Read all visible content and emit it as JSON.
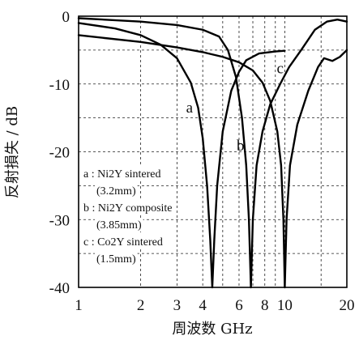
{
  "chart_data": {
    "type": "line",
    "title": "",
    "xlabel": "周波数 GHz",
    "ylabel": "反射損失 / dB",
    "x_scale": "log",
    "xlim": [
      1,
      20
    ],
    "ylim": [
      -40,
      0
    ],
    "grid": true,
    "x_ticks": [
      1,
      2,
      3,
      4,
      6,
      8,
      10,
      20
    ],
    "x_tick_labels": [
      "1",
      "2",
      "3",
      "4",
      "6",
      "8",
      "10",
      "20"
    ],
    "y_ticks": [
      0,
      -10,
      -20,
      -30,
      -40
    ],
    "y_tick_labels": [
      "0",
      "-10",
      "-20",
      "-30",
      "-40"
    ],
    "legend": {
      "placement": "bottom-left",
      "entries": [
        "a : Ni2Y sintered",
        "(3.2mm)",
        "b : Ni2Y composite",
        "(3.85mm)",
        "c : Co2Y sintered",
        "(1.5mm)"
      ]
    },
    "series": [
      {
        "label": "a",
        "points": [
          [
            1,
            -1.0
          ],
          [
            1.5,
            -1.8
          ],
          [
            2,
            -2.8
          ],
          [
            2.5,
            -4.2
          ],
          [
            3,
            -6.2
          ],
          [
            3.5,
            -9.8
          ],
          [
            3.8,
            -13.5
          ],
          [
            4.0,
            -18.0
          ],
          [
            4.2,
            -25.0
          ],
          [
            4.35,
            -33.0
          ],
          [
            4.45,
            -40.0
          ],
          [
            4.55,
            -33.0
          ],
          [
            4.7,
            -25.0
          ],
          [
            5.0,
            -17.0
          ],
          [
            5.5,
            -11.0
          ],
          [
            6.0,
            -8.2
          ],
          [
            6.5,
            -6.5
          ],
          [
            7.5,
            -5.5
          ],
          [
            9,
            -5.2
          ],
          [
            10,
            -5.1
          ]
        ]
      },
      {
        "label": "b",
        "points": [
          [
            1,
            -0.3
          ],
          [
            2,
            -0.8
          ],
          [
            3,
            -1.3
          ],
          [
            4,
            -2.0
          ],
          [
            4.8,
            -3.0
          ],
          [
            5.3,
            -5.0
          ],
          [
            5.8,
            -9.0
          ],
          [
            6.2,
            -15.0
          ],
          [
            6.5,
            -22.0
          ],
          [
            6.7,
            -30.0
          ],
          [
            6.85,
            -40.0
          ],
          [
            7.0,
            -30.0
          ],
          [
            7.3,
            -22.0
          ],
          [
            7.8,
            -17.0
          ],
          [
            8.5,
            -13.0
          ],
          [
            9.5,
            -10.0
          ],
          [
            10.5,
            -7.5
          ],
          [
            12,
            -5.0
          ],
          [
            14,
            -2.0
          ],
          [
            16,
            -0.8
          ],
          [
            18,
            -0.5
          ],
          [
            20,
            -0.8
          ]
        ]
      },
      {
        "label": "c",
        "points": [
          [
            1,
            -2.8
          ],
          [
            2,
            -3.8
          ],
          [
            3,
            -4.6
          ],
          [
            4,
            -5.3
          ],
          [
            5,
            -6.0
          ],
          [
            6,
            -6.8
          ],
          [
            7,
            -8.0
          ],
          [
            7.8,
            -9.8
          ],
          [
            8.5,
            -12.5
          ],
          [
            9.2,
            -17.0
          ],
          [
            9.6,
            -22.0
          ],
          [
            9.85,
            -30.0
          ],
          [
            10.0,
            -40.0
          ],
          [
            10.2,
            -30.0
          ],
          [
            10.6,
            -22.0
          ],
          [
            11.5,
            -16.0
          ],
          [
            13,
            -11.0
          ],
          [
            14.5,
            -7.5
          ],
          [
            15.5,
            -6.2
          ],
          [
            17,
            -6.6
          ],
          [
            18.5,
            -6.0
          ],
          [
            20,
            -5.0
          ]
        ]
      }
    ]
  }
}
